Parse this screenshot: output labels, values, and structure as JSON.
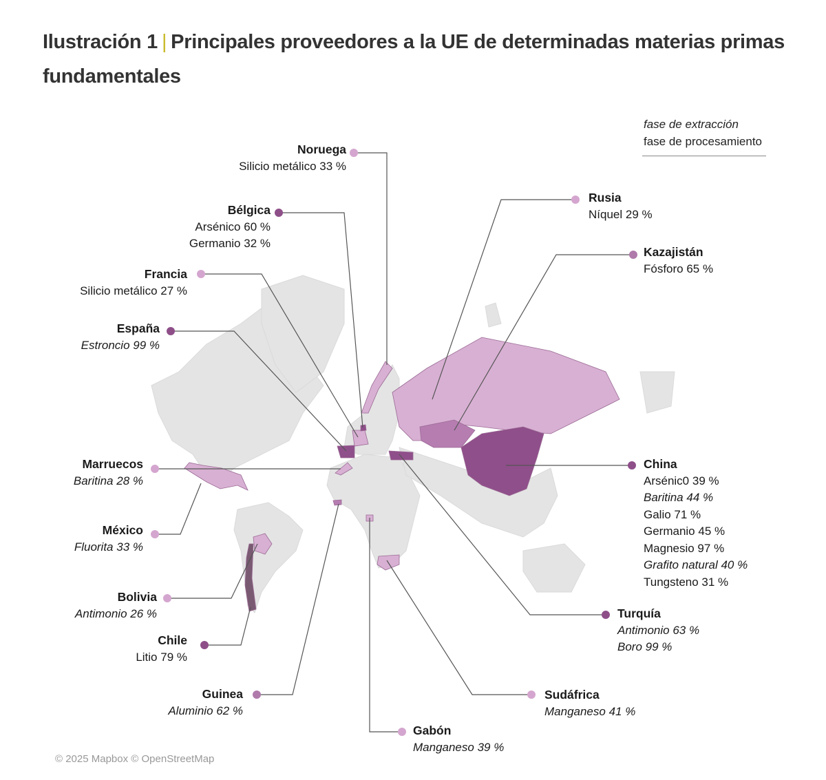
{
  "title": {
    "prefix": "Ilustración 1",
    "separator": "|",
    "text": "Principales proveedores a la UE de determinadas materias primas fundamentales"
  },
  "legend": {
    "extraction": "fase de extracción",
    "processing": "fase de procesamiento"
  },
  "colors": {
    "light": "#d8b0d3",
    "medium": "#b67db1",
    "dark": "#8f4f8a",
    "land": "#e4e4e4",
    "chile": "#7a5a72",
    "title_separator": "#c8b92a"
  },
  "countries": [
    {
      "name": "Noruega",
      "shade": "light",
      "materials": [
        {
          "text": "Silicio metálico 33 %",
          "extraction": false
        }
      ]
    },
    {
      "name": "Bélgica",
      "shade": "dark",
      "materials": [
        {
          "text": "Arsénico 60 %",
          "extraction": false
        },
        {
          "text": "Germanio 32 %",
          "extraction": false
        }
      ]
    },
    {
      "name": "Francia",
      "shade": "light",
      "materials": [
        {
          "text": "Silicio metálico 27 %",
          "extraction": false
        }
      ]
    },
    {
      "name": "España",
      "shade": "dark",
      "materials": [
        {
          "text": "Estroncio 99 %",
          "extraction": true
        }
      ]
    },
    {
      "name": "Marruecos",
      "shade": "light",
      "materials": [
        {
          "text": "Baritina 28 %",
          "extraction": true
        }
      ]
    },
    {
      "name": "México",
      "shade": "light",
      "materials": [
        {
          "text": "Fluorita 33 %",
          "extraction": true
        }
      ]
    },
    {
      "name": "Bolivia",
      "shade": "light",
      "materials": [
        {
          "text": "Antimonio 26 %",
          "extraction": true
        }
      ]
    },
    {
      "name": "Chile",
      "shade": "dark",
      "materials": [
        {
          "text": "Litio 79 %",
          "extraction": false
        }
      ]
    },
    {
      "name": "Guinea",
      "shade": "medium",
      "materials": [
        {
          "text": "Aluminio 62 %",
          "extraction": true
        }
      ]
    },
    {
      "name": "Gabón",
      "shade": "light",
      "materials": [
        {
          "text": "Manganeso 39 %",
          "extraction": true
        }
      ]
    },
    {
      "name": "Sudáfrica",
      "shade": "light",
      "materials": [
        {
          "text": "Manganeso 41 %",
          "extraction": true
        }
      ]
    },
    {
      "name": "Turquía",
      "shade": "dark",
      "materials": [
        {
          "text": "Antimonio 63 %",
          "extraction": true
        },
        {
          "text": "Boro 99 %",
          "extraction": true
        }
      ]
    },
    {
      "name": "China",
      "shade": "dark",
      "materials": [
        {
          "text": "Arsénic0 39 %",
          "extraction": false
        },
        {
          "text": "Baritina 44 %",
          "extraction": true
        },
        {
          "text": "Galio 71 %",
          "extraction": false
        },
        {
          "text": "Germanio 45 %",
          "extraction": false
        },
        {
          "text": "Magnesio 97 %",
          "extraction": false
        },
        {
          "text": "Grafito natural 40 %",
          "extraction": true
        },
        {
          "text": "Tungsteno 31 %",
          "extraction": false
        }
      ]
    },
    {
      "name": "Kazajistán",
      "shade": "medium",
      "materials": [
        {
          "text": "Fósforo 65 %",
          "extraction": false
        }
      ]
    },
    {
      "name": "Rusia",
      "shade": "light",
      "materials": [
        {
          "text": "Níquel 29 %",
          "extraction": false
        }
      ]
    }
  ],
  "credit": "© 2025 Mapbox © OpenStreetMap"
}
